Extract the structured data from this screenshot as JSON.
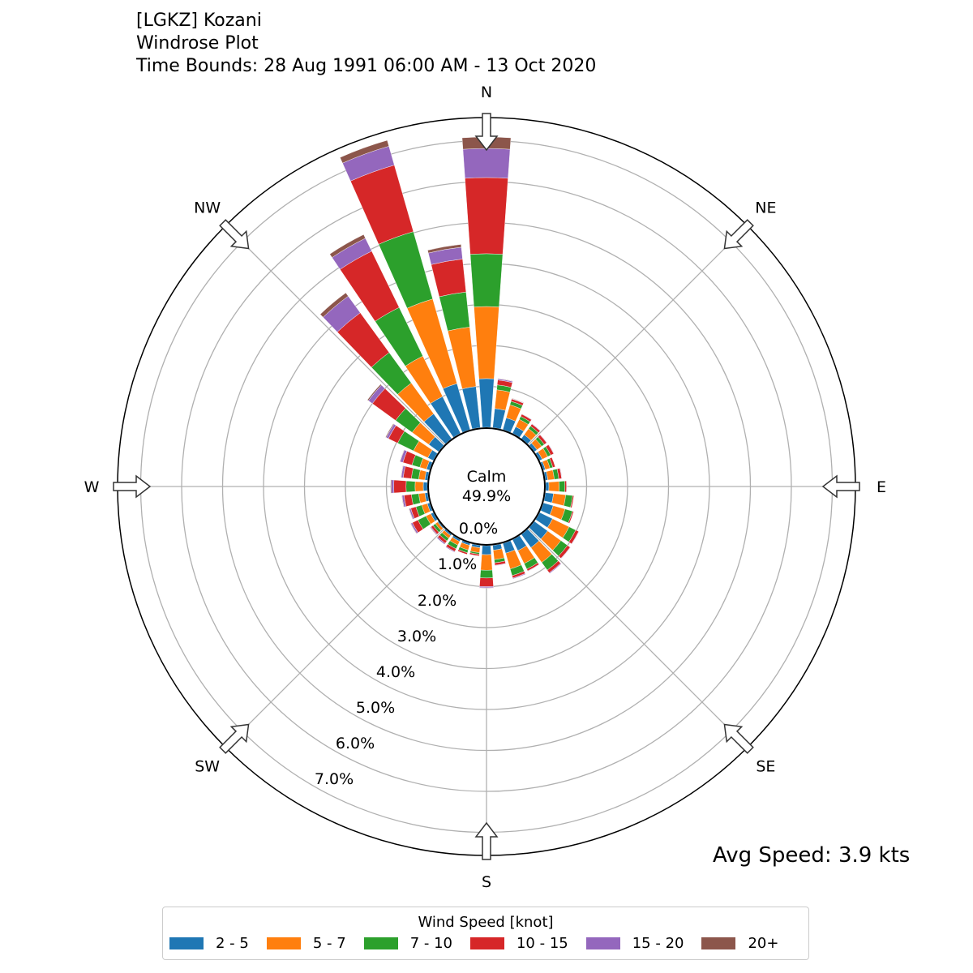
{
  "title": {
    "line1": "[LGKZ] Kozani",
    "line2": "Windrose Plot",
    "line3": "Time Bounds: 28 Aug 1991 06:00 AM - 13 Oct 2020"
  },
  "calm": {
    "label": "Calm",
    "value": "49.9%"
  },
  "avg_speed": "Avg Speed: 3.9 kts",
  "chart_data": {
    "type": "windrose",
    "title": "[LGKZ] Kozani Windrose Plot",
    "compass_labels": [
      {
        "label": "N",
        "deg": 0
      },
      {
        "label": "NE",
        "deg": 45
      },
      {
        "label": "E",
        "deg": 90
      },
      {
        "label": "SE",
        "deg": 135
      },
      {
        "label": "S",
        "deg": 180
      },
      {
        "label": "SW",
        "deg": 225
      },
      {
        "label": "W",
        "deg": 270
      },
      {
        "label": "NW",
        "deg": 315
      }
    ],
    "radial_ticks": [
      "0.0%",
      "1.0%",
      "2.0%",
      "3.0%",
      "4.0%",
      "5.0%",
      "6.0%",
      "7.0%"
    ],
    "radial_tick_values": [
      0,
      1,
      2,
      3,
      4,
      5,
      6,
      7
    ],
    "rlim": [
      0,
      7.5
    ],
    "unit": "percent",
    "legend": {
      "title": "Wind Speed [knot]",
      "placement": "bottom",
      "entries": [
        {
          "label": "2 - 5",
          "color": "#1f77b4"
        },
        {
          "label": "5 - 7",
          "color": "#ff7f0e"
        },
        {
          "label": "7 - 10",
          "color": "#2ca02c"
        },
        {
          "label": "10 - 15",
          "color": "#d62728"
        },
        {
          "label": "15 - 20",
          "color": "#9467bd"
        },
        {
          "label": "20+",
          "color": "#8c564b"
        }
      ]
    },
    "directions": [
      0,
      10,
      20,
      30,
      40,
      50,
      60,
      70,
      80,
      90,
      100,
      110,
      120,
      130,
      140,
      150,
      160,
      170,
      180,
      190,
      200,
      210,
      220,
      230,
      240,
      250,
      260,
      270,
      280,
      290,
      300,
      310,
      320,
      330,
      340,
      350
    ],
    "values": [
      [
        1.19,
        1.76,
        1.29,
        1.86,
        0.71,
        0.28
      ],
      [
        0.47,
        0.46,
        0.12,
        0.12,
        0.03,
        0.01
      ],
      [
        0.3,
        0.33,
        0.09,
        0.06,
        0.01,
        0.01
      ],
      [
        0.18,
        0.2,
        0.08,
        0.06,
        0.01,
        0
      ],
      [
        0.12,
        0.18,
        0.08,
        0.06,
        0.01,
        0
      ],
      [
        0.08,
        0.14,
        0.08,
        0.07,
        0.01,
        0
      ],
      [
        0.07,
        0.15,
        0.08,
        0.08,
        0.01,
        0
      ],
      [
        0.05,
        0.12,
        0.07,
        0.06,
        0,
        0
      ],
      [
        0.06,
        0.16,
        0.11,
        0.07,
        0.01,
        0
      ],
      [
        0.08,
        0.25,
        0.14,
        0.04,
        0.01,
        0
      ],
      [
        0.2,
        0.3,
        0.17,
        0.03,
        0,
        0
      ],
      [
        0.25,
        0.3,
        0.19,
        0.03,
        0,
        0
      ],
      [
        0.35,
        0.45,
        0.18,
        0.08,
        0.01,
        0
      ],
      [
        0.4,
        0.4,
        0.2,
        0.08,
        0.01,
        0
      ],
      [
        0.4,
        0.45,
        0.23,
        0.08,
        0.02,
        0
      ],
      [
        0.3,
        0.35,
        0.15,
        0.05,
        0.01,
        0
      ],
      [
        0.25,
        0.4,
        0.17,
        0.06,
        0.02,
        0
      ],
      [
        0.12,
        0.23,
        0.08,
        0.06,
        0.01,
        0
      ],
      [
        0.22,
        0.38,
        0.19,
        0.21,
        0.03,
        0.01
      ],
      [
        0.06,
        0.12,
        0.04,
        0.04,
        0,
        0
      ],
      [
        0.05,
        0.12,
        0.07,
        0.04,
        0,
        0
      ],
      [
        0.05,
        0.1,
        0.1,
        0.07,
        0.02,
        0
      ],
      [
        0.04,
        0.08,
        0.08,
        0.07,
        0.03,
        0
      ],
      [
        0.03,
        0.07,
        0.07,
        0.06,
        0.02,
        0.01
      ],
      [
        0.07,
        0.13,
        0.22,
        0.15,
        0.04,
        0.01
      ],
      [
        0.06,
        0.14,
        0.15,
        0.13,
        0.04,
        0.01
      ],
      [
        0.07,
        0.15,
        0.18,
        0.18,
        0.05,
        0.01
      ],
      [
        0.1,
        0.2,
        0.22,
        0.3,
        0.06,
        0.02
      ],
      [
        0.07,
        0.15,
        0.18,
        0.2,
        0.05,
        0.01
      ],
      [
        0.08,
        0.17,
        0.2,
        0.23,
        0.07,
        0.01
      ],
      [
        0.15,
        0.39,
        0.43,
        0.25,
        0.06,
        0.02
      ],
      [
        0.3,
        0.5,
        0.5,
        0.7,
        0.12,
        0.03
      ],
      [
        0.75,
        0.93,
        0.92,
        1.2,
        0.5,
        0.1
      ],
      [
        1.0,
        1.1,
        1.32,
        1.53,
        0.35,
        0.1
      ],
      [
        1.17,
        2.15,
        1.71,
        1.69,
        0.48,
        0.15
      ],
      [
        1.01,
        1.46,
        0.86,
        0.81,
        0.29,
        0.07
      ]
    ]
  }
}
